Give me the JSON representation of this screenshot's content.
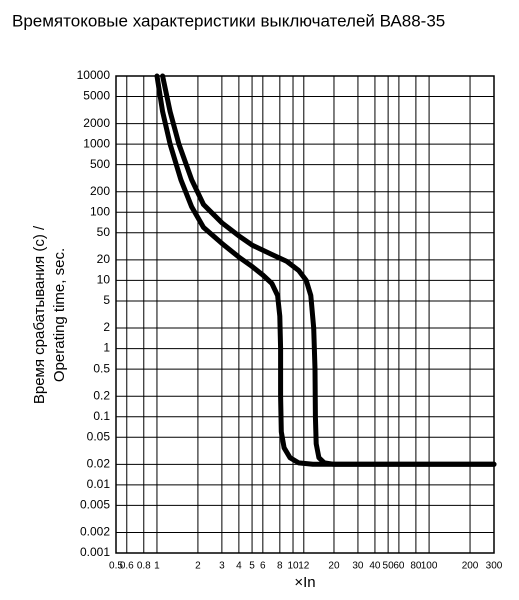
{
  "chart_data": {
    "type": "line",
    "title": "Времятоковые характеристики выключателей ВА88-35",
    "y_label_lines": [
      "Время срабатывания (с) /",
      "Operating time, sec."
    ],
    "x_label": "×In",
    "xlog": true,
    "ylog": true,
    "grid": true,
    "xlim": [
      0.5,
      300
    ],
    "ylim": [
      0.001,
      10000
    ],
    "xticks": [
      0.5,
      0.6,
      0.8,
      1,
      2,
      3,
      4,
      5,
      6,
      8,
      10,
      12,
      20,
      30,
      40,
      50,
      60,
      80,
      100,
      200,
      300
    ],
    "yticks": [
      10000,
      5000,
      2000,
      1000,
      500,
      200,
      100,
      50,
      20,
      10,
      5,
      2,
      1,
      0.5,
      0.2,
      0.1,
      0.05,
      0.02,
      0.01,
      0.005,
      0.002,
      0.001
    ],
    "series": [
      {
        "color": "#000000",
        "x": [
          1.0,
          1.1,
          1.25,
          1.5,
          1.8,
          2.2,
          3,
          4,
          5,
          6,
          7,
          7.7,
          8,
          8.1,
          8.1,
          8.2,
          8.6,
          9.5,
          11,
          14,
          300
        ],
        "values": [
          10000,
          3000,
          1000,
          300,
          120,
          60,
          35,
          22,
          16,
          12,
          9,
          6,
          3,
          1,
          0.2,
          0.06,
          0.035,
          0.025,
          0.021,
          0.02,
          0.02
        ]
      },
      {
        "color": "#000000",
        "x": [
          1.1,
          1.25,
          1.45,
          1.8,
          2.2,
          3,
          4,
          5,
          7,
          9,
          11,
          12.5,
          13.5,
          14.2,
          14.5,
          14.6,
          14.8,
          15.5,
          17,
          20,
          300
        ],
        "values": [
          10000,
          3000,
          1000,
          300,
          130,
          70,
          45,
          33,
          24,
          19,
          14,
          10,
          6,
          2,
          0.5,
          0.1,
          0.04,
          0.025,
          0.021,
          0.02,
          0.02
        ]
      }
    ]
  }
}
